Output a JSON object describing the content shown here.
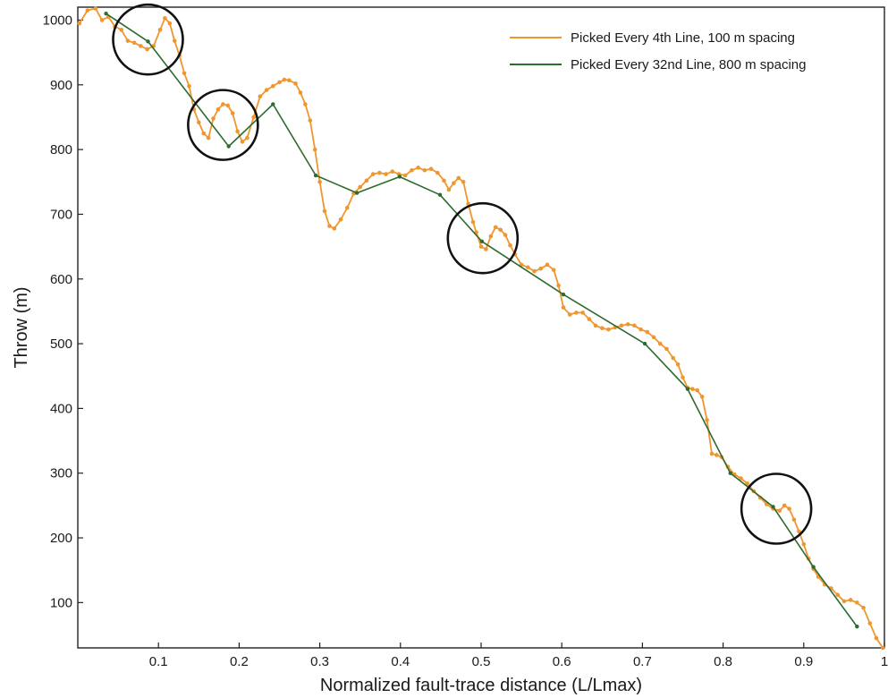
{
  "chart_data": {
    "type": "line",
    "xlabel": "Normalized fault-trace distance (L/Lmax)",
    "ylabel": "Throw (m)",
    "xlim": [
      0,
      1
    ],
    "ylim": [
      30,
      1020
    ],
    "x_ticks": [
      0.1,
      0.2,
      0.3,
      0.4,
      0.5,
      0.6,
      0.7,
      0.8,
      0.9,
      1
    ],
    "x_tick_labels": [
      "0.1",
      "0.2",
      "0.3",
      "0.4",
      "0.5",
      "0.6",
      "0.7",
      "0.8",
      "0.9",
      "1"
    ],
    "y_ticks": [
      100,
      200,
      300,
      400,
      500,
      600,
      700,
      800,
      900,
      1000
    ],
    "y_tick_labels": [
      "100",
      "200",
      "300",
      "400",
      "500",
      "600",
      "700",
      "800",
      "900",
      "1000"
    ],
    "grid": false,
    "legend_position": "top-right",
    "series": [
      {
        "name": "Picked Every 4th Line, 100 m spacing",
        "color": "#f0962e",
        "points": [
          [
            0.002,
            995
          ],
          [
            0.012,
            1015
          ],
          [
            0.022,
            1018
          ],
          [
            0.03,
            1000
          ],
          [
            0.038,
            1005
          ],
          [
            0.046,
            990
          ],
          [
            0.054,
            985
          ],
          [
            0.062,
            968
          ],
          [
            0.07,
            965
          ],
          [
            0.078,
            960
          ],
          [
            0.086,
            955
          ],
          [
            0.094,
            960
          ],
          [
            0.102,
            985
          ],
          [
            0.108,
            1003
          ],
          [
            0.114,
            995
          ],
          [
            0.12,
            968
          ],
          [
            0.126,
            945
          ],
          [
            0.132,
            918
          ],
          [
            0.138,
            898
          ],
          [
            0.144,
            862
          ],
          [
            0.15,
            842
          ],
          [
            0.156,
            825
          ],
          [
            0.162,
            818
          ],
          [
            0.168,
            848
          ],
          [
            0.174,
            862
          ],
          [
            0.18,
            870
          ],
          [
            0.186,
            868
          ],
          [
            0.192,
            856
          ],
          [
            0.198,
            828
          ],
          [
            0.204,
            812
          ],
          [
            0.21,
            818
          ],
          [
            0.218,
            850
          ],
          [
            0.226,
            882
          ],
          [
            0.234,
            892
          ],
          [
            0.242,
            898
          ],
          [
            0.25,
            904
          ],
          [
            0.256,
            908
          ],
          [
            0.262,
            907
          ],
          [
            0.27,
            902
          ],
          [
            0.276,
            888
          ],
          [
            0.282,
            870
          ],
          [
            0.288,
            845
          ],
          [
            0.294,
            800
          ],
          [
            0.3,
            750
          ],
          [
            0.306,
            705
          ],
          [
            0.312,
            682
          ],
          [
            0.318,
            678
          ],
          [
            0.326,
            692
          ],
          [
            0.334,
            710
          ],
          [
            0.342,
            732
          ],
          [
            0.35,
            742
          ],
          [
            0.358,
            752
          ],
          [
            0.366,
            762
          ],
          [
            0.374,
            764
          ],
          [
            0.382,
            762
          ],
          [
            0.39,
            766
          ],
          [
            0.398,
            762
          ],
          [
            0.406,
            760
          ],
          [
            0.414,
            768
          ],
          [
            0.422,
            772
          ],
          [
            0.43,
            768
          ],
          [
            0.438,
            770
          ],
          [
            0.446,
            764
          ],
          [
            0.454,
            752
          ],
          [
            0.46,
            738
          ],
          [
            0.466,
            748
          ],
          [
            0.472,
            756
          ],
          [
            0.478,
            750
          ],
          [
            0.484,
            716
          ],
          [
            0.49,
            688
          ],
          [
            0.494,
            672
          ],
          [
            0.5,
            650
          ],
          [
            0.506,
            646
          ],
          [
            0.512,
            666
          ],
          [
            0.518,
            680
          ],
          [
            0.524,
            676
          ],
          [
            0.53,
            668
          ],
          [
            0.536,
            652
          ],
          [
            0.542,
            638
          ],
          [
            0.55,
            622
          ],
          [
            0.558,
            618
          ],
          [
            0.566,
            612
          ],
          [
            0.574,
            616
          ],
          [
            0.582,
            622
          ],
          [
            0.59,
            614
          ],
          [
            0.596,
            590
          ],
          [
            0.602,
            556
          ],
          [
            0.61,
            545
          ],
          [
            0.618,
            548
          ],
          [
            0.626,
            548
          ],
          [
            0.634,
            538
          ],
          [
            0.642,
            528
          ],
          [
            0.65,
            524
          ],
          [
            0.658,
            522
          ],
          [
            0.666,
            525
          ],
          [
            0.674,
            528
          ],
          [
            0.682,
            530
          ],
          [
            0.69,
            528
          ],
          [
            0.698,
            522
          ],
          [
            0.706,
            518
          ],
          [
            0.714,
            510
          ],
          [
            0.722,
            500
          ],
          [
            0.73,
            492
          ],
          [
            0.738,
            478
          ],
          [
            0.744,
            468
          ],
          [
            0.75,
            448
          ],
          [
            0.756,
            432
          ],
          [
            0.762,
            430
          ],
          [
            0.768,
            428
          ],
          [
            0.774,
            418
          ],
          [
            0.78,
            382
          ],
          [
            0.786,
            330
          ],
          [
            0.792,
            328
          ],
          [
            0.798,
            325
          ],
          [
            0.806,
            310
          ],
          [
            0.814,
            298
          ],
          [
            0.822,
            292
          ],
          [
            0.83,
            284
          ],
          [
            0.838,
            272
          ],
          [
            0.846,
            262
          ],
          [
            0.854,
            252
          ],
          [
            0.862,
            245
          ],
          [
            0.87,
            242
          ],
          [
            0.876,
            250
          ],
          [
            0.882,
            245
          ],
          [
            0.888,
            228
          ],
          [
            0.894,
            210
          ],
          [
            0.9,
            190
          ],
          [
            0.906,
            168
          ],
          [
            0.912,
            152
          ],
          [
            0.918,
            140
          ],
          [
            0.926,
            128
          ],
          [
            0.934,
            122
          ],
          [
            0.942,
            112
          ],
          [
            0.95,
            102
          ],
          [
            0.958,
            104
          ],
          [
            0.966,
            100
          ],
          [
            0.974,
            92
          ],
          [
            0.982,
            68
          ],
          [
            0.99,
            45
          ],
          [
            0.998,
            30
          ]
        ]
      },
      {
        "name": "Picked Every 32nd Line, 800 m spacing",
        "color": "#2e6b2f",
        "points": [
          [
            0.035,
            1010
          ],
          [
            0.087,
            967
          ],
          [
            0.187,
            805
          ],
          [
            0.242,
            870
          ],
          [
            0.295,
            760
          ],
          [
            0.346,
            733
          ],
          [
            0.399,
            758
          ],
          [
            0.449,
            730
          ],
          [
            0.501,
            658
          ],
          [
            0.602,
            576
          ],
          [
            0.703,
            500
          ],
          [
            0.756,
            430
          ],
          [
            0.809,
            300
          ],
          [
            0.862,
            248
          ],
          [
            0.912,
            155
          ],
          [
            0.966,
            63
          ]
        ]
      }
    ],
    "annotations": [
      {
        "type": "circle",
        "cx": 0.087,
        "cy": 970
      },
      {
        "type": "circle",
        "cx": 0.18,
        "cy": 838
      },
      {
        "type": "circle",
        "cx": 0.502,
        "cy": 663
      },
      {
        "type": "circle",
        "cx": 0.866,
        "cy": 245
      }
    ]
  }
}
